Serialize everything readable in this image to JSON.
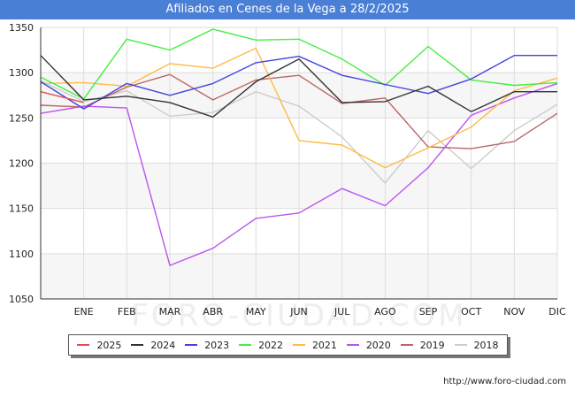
{
  "chart_data": {
    "type": "line",
    "title": "Afiliados en Cenes de la Vega a 28/2/2025",
    "categories": [
      "",
      "ENE",
      "FEB",
      "MAR",
      "ABR",
      "MAY",
      "JUN",
      "JUL",
      "AGO",
      "SEP",
      "OCT",
      "NOV",
      "DIC"
    ],
    "ylim": [
      1050,
      1350
    ],
    "yticks": [
      1050,
      1100,
      1150,
      1200,
      1250,
      1300,
      1350
    ],
    "grid": true,
    "legend_position": "bottom",
    "series": [
      {
        "name": "2025",
        "color": "#e05050",
        "values": [
          1279,
          1267,
          null,
          null,
          null,
          null,
          null,
          null,
          null,
          null,
          null,
          null,
          null
        ]
      },
      {
        "name": "2024",
        "color": "#333333",
        "values": [
          1319,
          1270,
          1274,
          1267,
          1251,
          1290,
          1315,
          1267,
          1268,
          1285,
          1257,
          1279,
          1279
        ]
      },
      {
        "name": "2023",
        "color": "#4444dd",
        "values": [
          1290,
          1260,
          1288,
          1275,
          1288,
          1311,
          1318,
          1297,
          1287,
          1277,
          1293,
          1319,
          1319
        ]
      },
      {
        "name": "2022",
        "color": "#44ee44",
        "values": [
          1295,
          1271,
          1337,
          1325,
          1348,
          1336,
          1337,
          1315,
          1286,
          1329,
          1292,
          1286,
          1289
        ]
      },
      {
        "name": "2021",
        "color": "#ffbb44",
        "values": [
          1288,
          1289,
          1285,
          1310,
          1305,
          1327,
          1225,
          1220,
          1195,
          1217,
          1240,
          1280,
          1294
        ]
      },
      {
        "name": "2020",
        "color": "#bb55ee",
        "values": [
          1255,
          1263,
          1261,
          1087,
          1106,
          1139,
          1145,
          1172,
          1153,
          1195,
          1253,
          1272,
          1288
        ]
      },
      {
        "name": "2019",
        "color": "#bb6666",
        "values": [
          1264,
          1262,
          1284,
          1298,
          1270,
          1292,
          1297,
          1266,
          1272,
          1218,
          1216,
          1224,
          1255
        ]
      },
      {
        "name": "2018",
        "color": "#cccccc",
        "values": [
          1291,
          1268,
          1280,
          1252,
          1256,
          1279,
          1263,
          1229,
          1178,
          1236,
          1194,
          1236,
          1265
        ]
      }
    ]
  },
  "source": "http://www.foro-ciudad.com",
  "watermark": "FORO-CIUDAD.COM"
}
